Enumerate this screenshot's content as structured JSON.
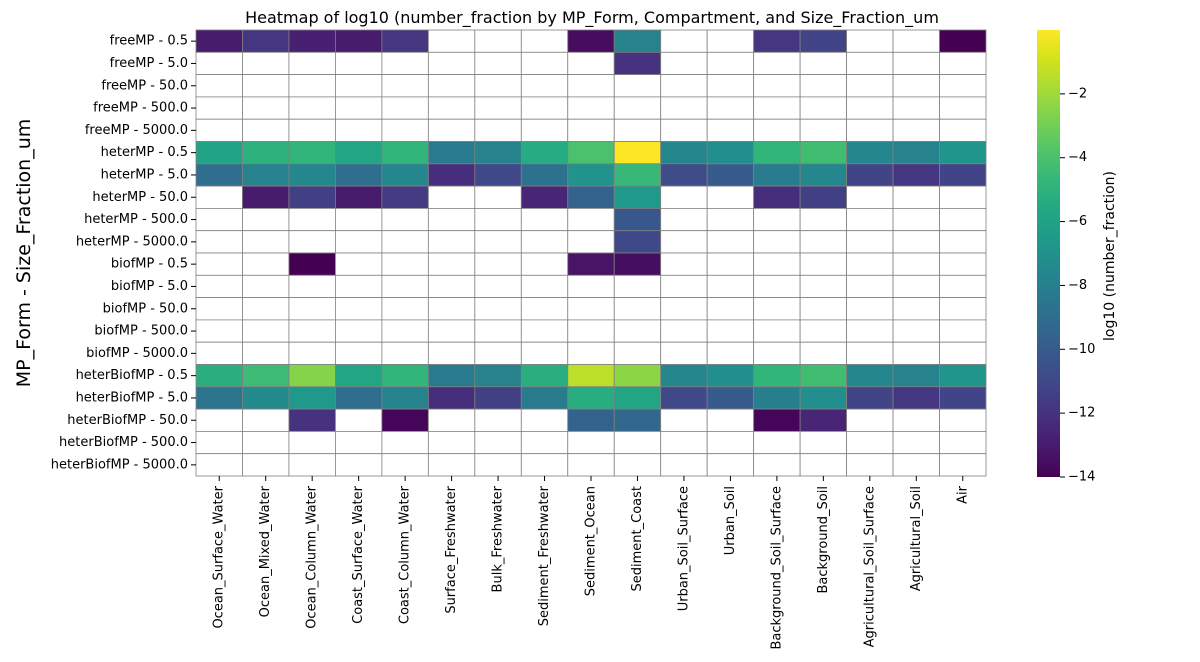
{
  "chart_data": {
    "type": "heatmap",
    "title": "Heatmap of log10 (number_fraction by MP_Form, Compartment, and Size_Fraction_um",
    "xlabel": "",
    "ylabel": "MP_Form - Size_Fraction_um",
    "colorbar_label": "log10 (number_fraction)",
    "colormap": "viridis",
    "vmin": -14,
    "vmax": 0,
    "colorbar_ticks": [
      -2,
      -4,
      -6,
      -8,
      -10,
      -12,
      -14
    ],
    "colorbar_tick_labels": [
      "−2",
      "−4",
      "−6",
      "−8",
      "−10",
      "−12",
      "−14"
    ],
    "missing_color": "#ffffff",
    "grid_color": "#808080",
    "columns": [
      "Ocean_Surface_Water",
      "Ocean_Mixed_Water",
      "Ocean_Column_Water",
      "Coast_Surface_Water",
      "Coast_Column_Water",
      "Surface_Freshwater",
      "Bulk_Freshwater",
      "Sediment_Freshwater",
      "Sediment_Ocean",
      "Sediment_Coast",
      "Urban_Soil_Surface",
      "Urban_Soil",
      "Background_Soil_Surface",
      "Background_Soil",
      "Agricultural_Soil_Surface",
      "Agricultural_Soil",
      "Air"
    ],
    "rows": [
      "freeMP - 0.5",
      "freeMP - 5.0",
      "freeMP - 50.0",
      "freeMP - 500.0",
      "freeMP - 5000.0",
      "heterMP - 0.5",
      "heterMP - 5.0",
      "heterMP - 50.0",
      "heterMP - 500.0",
      "heterMP - 5000.0",
      "biofMP - 0.5",
      "biofMP - 5.0",
      "biofMP - 50.0",
      "biofMP - 500.0",
      "biofMP - 5000.0",
      "heterBiofMP - 0.5",
      "heterBiofMP - 5.0",
      "heterBiofMP - 50.0",
      "heterBiofMP - 500.0",
      "heterBiofMP - 5000.0"
    ],
    "values": [
      [
        -13.0,
        -11.8,
        -12.8,
        -13.0,
        -11.8,
        null,
        null,
        null,
        -13.6,
        -7.8,
        null,
        null,
        -11.8,
        -11.2,
        null,
        null,
        -14.0
      ],
      [
        null,
        null,
        null,
        null,
        null,
        null,
        null,
        null,
        null,
        -12.0,
        null,
        null,
        null,
        null,
        null,
        null,
        null
      ],
      [
        null,
        null,
        null,
        null,
        null,
        null,
        null,
        null,
        null,
        null,
        null,
        null,
        null,
        null,
        null,
        null,
        null
      ],
      [
        null,
        null,
        null,
        null,
        null,
        null,
        null,
        null,
        null,
        null,
        null,
        null,
        null,
        null,
        null,
        null,
        null
      ],
      [
        null,
        null,
        null,
        null,
        null,
        null,
        null,
        null,
        null,
        null,
        null,
        null,
        null,
        null,
        null,
        null,
        null
      ],
      [
        -5.9,
        -5.0,
        -4.8,
        -5.8,
        -4.8,
        -8.3,
        -7.8,
        -5.4,
        -4.0,
        0.0,
        -7.6,
        -7.2,
        -4.8,
        -4.3,
        -7.6,
        -7.8,
        -6.8
      ],
      [
        -9.0,
        -7.8,
        -7.6,
        -9.0,
        -7.6,
        -12.2,
        -11.0,
        -8.8,
        -7.0,
        -4.6,
        -10.8,
        -10.0,
        -8.2,
        -7.6,
        -11.2,
        -11.8,
        -11.2
      ],
      [
        null,
        -13.0,
        -11.4,
        -13.0,
        -11.6,
        null,
        null,
        -12.6,
        -9.6,
        -6.6,
        null,
        null,
        -12.2,
        -11.4,
        null,
        null,
        null
      ],
      [
        null,
        null,
        null,
        null,
        null,
        null,
        null,
        null,
        null,
        -10.2,
        null,
        null,
        null,
        null,
        null,
        null,
        null
      ],
      [
        null,
        null,
        null,
        null,
        null,
        null,
        null,
        null,
        null,
        -11.0,
        null,
        null,
        null,
        null,
        null,
        null,
        null
      ],
      [
        null,
        null,
        -14.0,
        null,
        null,
        null,
        null,
        null,
        -13.3,
        -13.5,
        null,
        null,
        null,
        null,
        null,
        null,
        null
      ],
      [
        null,
        null,
        null,
        null,
        null,
        null,
        null,
        null,
        null,
        null,
        null,
        null,
        null,
        null,
        null,
        null,
        null
      ],
      [
        null,
        null,
        null,
        null,
        null,
        null,
        null,
        null,
        null,
        null,
        null,
        null,
        null,
        null,
        null,
        null,
        null
      ],
      [
        null,
        null,
        null,
        null,
        null,
        null,
        null,
        null,
        null,
        null,
        null,
        null,
        null,
        null,
        null,
        null,
        null
      ],
      [
        null,
        null,
        null,
        null,
        null,
        null,
        null,
        null,
        null,
        null,
        null,
        null,
        null,
        null,
        null,
        null,
        null
      ],
      [
        -5.2,
        -4.4,
        -2.6,
        -5.8,
        -4.8,
        -8.3,
        -7.8,
        -5.2,
        -1.4,
        -2.4,
        -7.6,
        -7.2,
        -4.8,
        -4.3,
        -7.6,
        -7.8,
        -6.8
      ],
      [
        -8.6,
        -7.4,
        -6.6,
        -9.0,
        -7.8,
        -12.2,
        -11.4,
        -8.2,
        -5.3,
        -5.8,
        -11.0,
        -10.0,
        -8.0,
        -7.2,
        -11.2,
        -11.8,
        -11.2
      ],
      [
        null,
        null,
        -12.0,
        null,
        -13.8,
        null,
        null,
        null,
        -9.6,
        -9.4,
        null,
        null,
        -13.8,
        -12.6,
        null,
        null,
        null
      ],
      [
        null,
        null,
        null,
        null,
        null,
        null,
        null,
        null,
        null,
        null,
        null,
        null,
        null,
        null,
        null,
        null,
        null
      ],
      [
        null,
        null,
        null,
        null,
        null,
        null,
        null,
        null,
        null,
        null,
        null,
        null,
        null,
        null,
        null,
        null,
        null
      ]
    ]
  }
}
